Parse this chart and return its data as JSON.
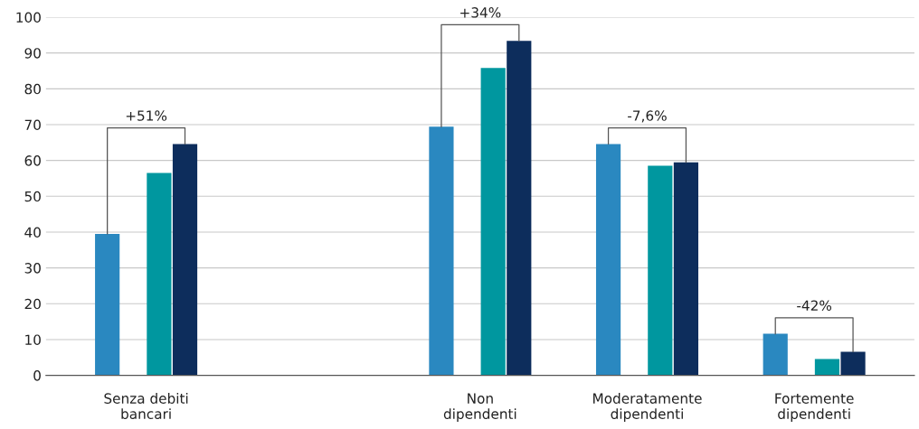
{
  "chart_data": {
    "type": "bar",
    "categories": [
      "Senza debiti\nbancari",
      null,
      "Non\ndipendenti",
      "Moderatamente\ndipendenti",
      "Fortemente\ndipendenti"
    ],
    "series": [
      {
        "color": "#2a88c0",
        "values": [
          39.5,
          null,
          69.4,
          64.6,
          11.6
        ]
      },
      {
        "color": "#00979f",
        "values": [
          56.5,
          null,
          85.8,
          58.5,
          4.6
        ]
      },
      {
        "color": "#0d2d5c",
        "values": [
          64.6,
          null,
          93.4,
          59.5,
          6.6
        ]
      }
    ],
    "ylim": [
      0,
      100
    ],
    "yticks": [
      0,
      10,
      20,
      30,
      40,
      50,
      60,
      70,
      80,
      90,
      100
    ],
    "grid": "y",
    "annotations": [
      "+51%",
      "+34%",
      "-7,6%",
      "-42%"
    ]
  }
}
